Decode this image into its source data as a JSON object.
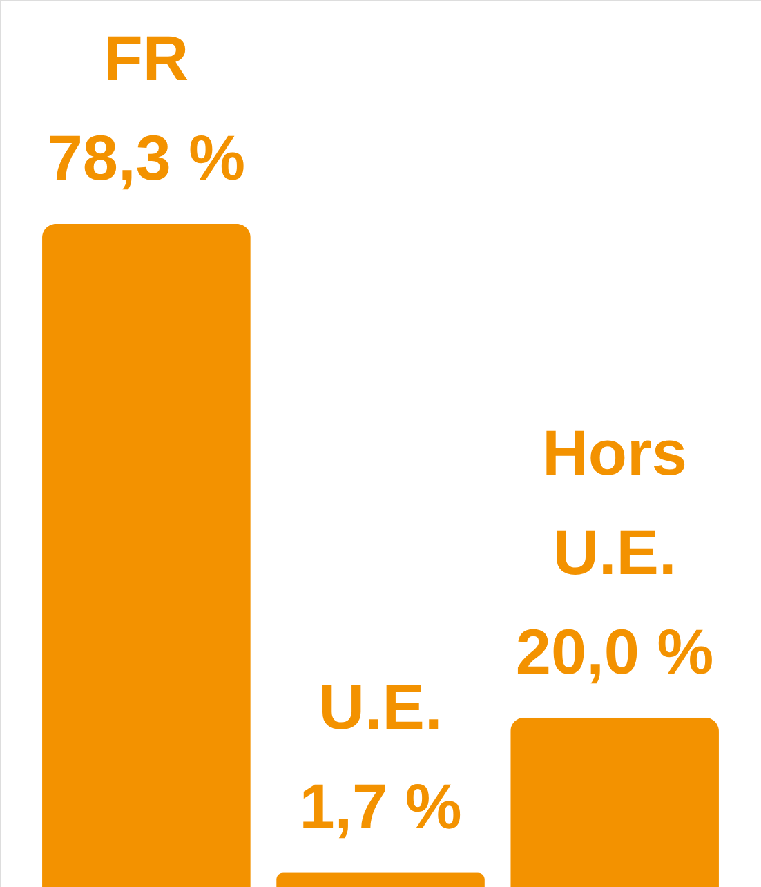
{
  "chart_data": {
    "type": "bar",
    "categories": [
      "FR",
      "U.E.",
      "Hors U.E."
    ],
    "values": [
      78.3,
      1.7,
      20.0
    ],
    "color": "#f39200",
    "value_labels": [
      "78,3 %",
      "1,7 %",
      "20,0 %"
    ]
  }
}
